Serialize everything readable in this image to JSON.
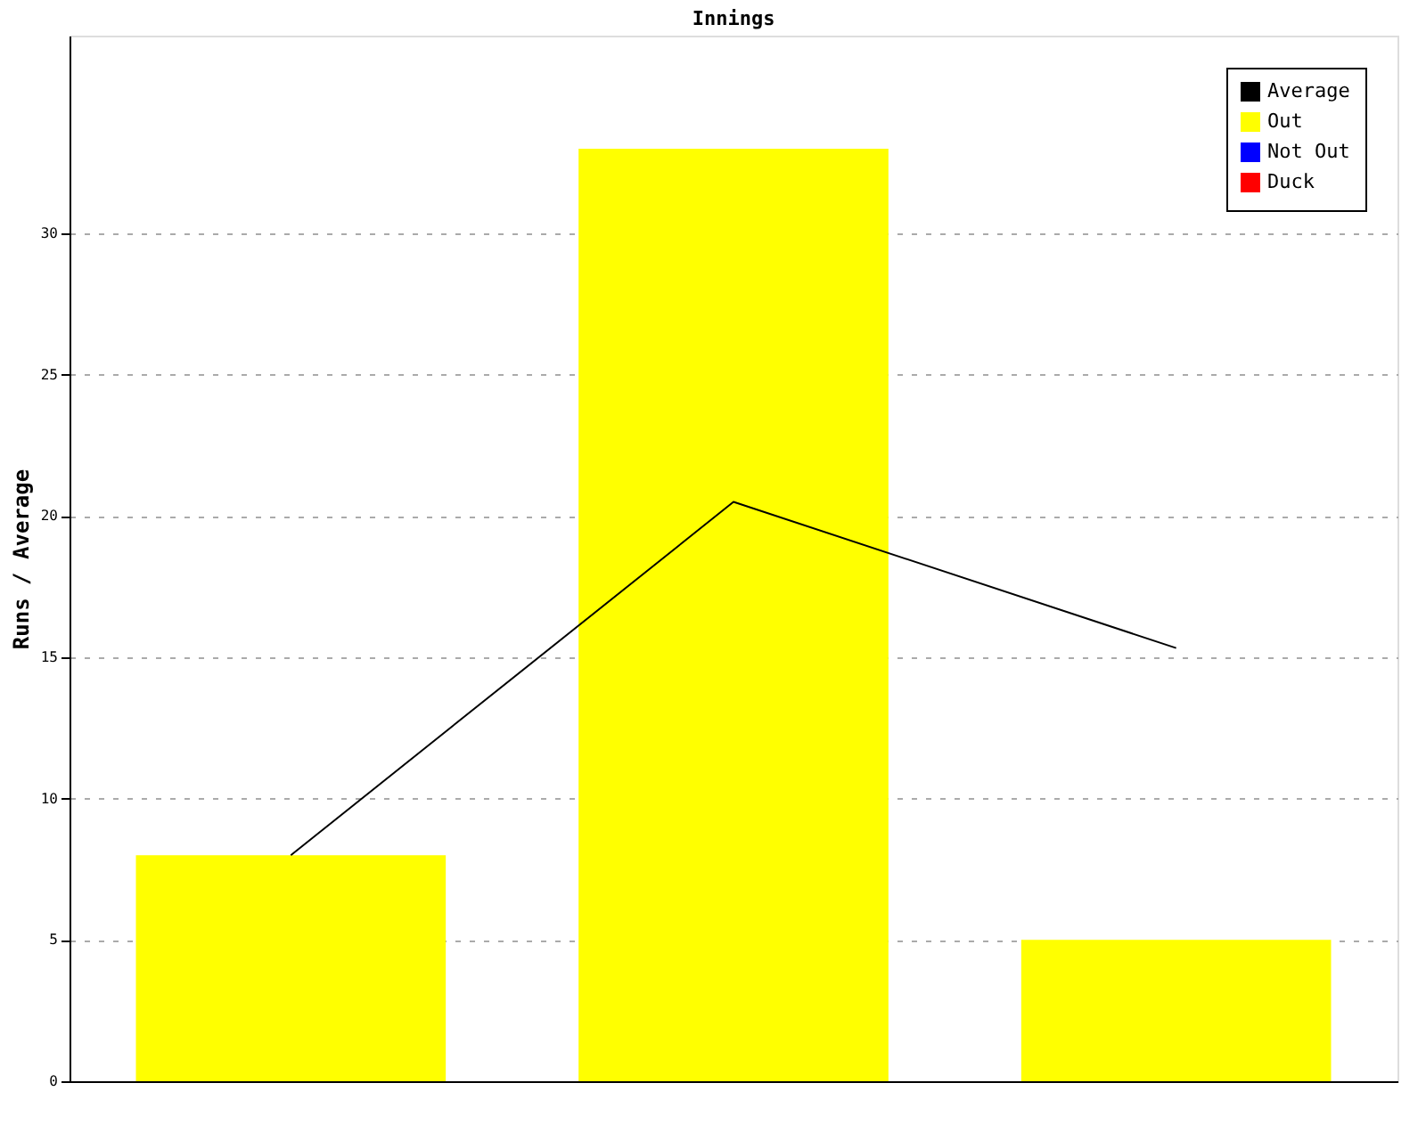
{
  "chart_data": {
    "type": "bar",
    "title": "Innings",
    "ylabel": "Runs / Average",
    "categories": [
      null,
      null,
      null
    ],
    "ylim": [
      0,
      37
    ],
    "yticks": [
      0,
      5,
      10,
      15,
      20,
      25,
      30
    ],
    "grid": "y",
    "legend": "top right",
    "marker": "none",
    "series": [
      {
        "name": "Average",
        "type": "line",
        "color": "#000000",
        "values": [
          8,
          20.5,
          15.33
        ]
      },
      {
        "name": "Out",
        "color": "#ffff00",
        "values": [
          8,
          33,
          5
        ]
      },
      {
        "name": "Not Out",
        "color": "#0000ff",
        "values": [
          null,
          null,
          null
        ]
      },
      {
        "name": "Duck",
        "color": "#ff0000",
        "values": [
          null,
          null,
          null
        ]
      }
    ]
  }
}
